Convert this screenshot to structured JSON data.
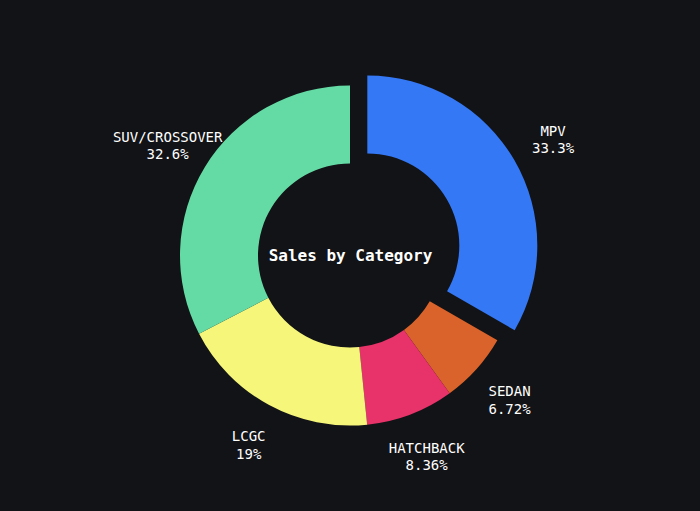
{
  "chart_data": {
    "type": "pie",
    "title": "Sales by Category",
    "categories": [
      "MPV",
      "SEDAN",
      "HATCHBACK",
      "LCGC",
      "SUV/CROSSOVER"
    ],
    "values": [
      33.3,
      6.72,
      8.36,
      19,
      32.6
    ],
    "value_labels": [
      "33.3%",
      "6.72%",
      "8.36%",
      "19%",
      "32.6%"
    ],
    "colors": [
      "#3478f6",
      "#d9632a",
      "#e8336a",
      "#f5f67a",
      "#64dba5"
    ],
    "data_labels": true
  }
}
